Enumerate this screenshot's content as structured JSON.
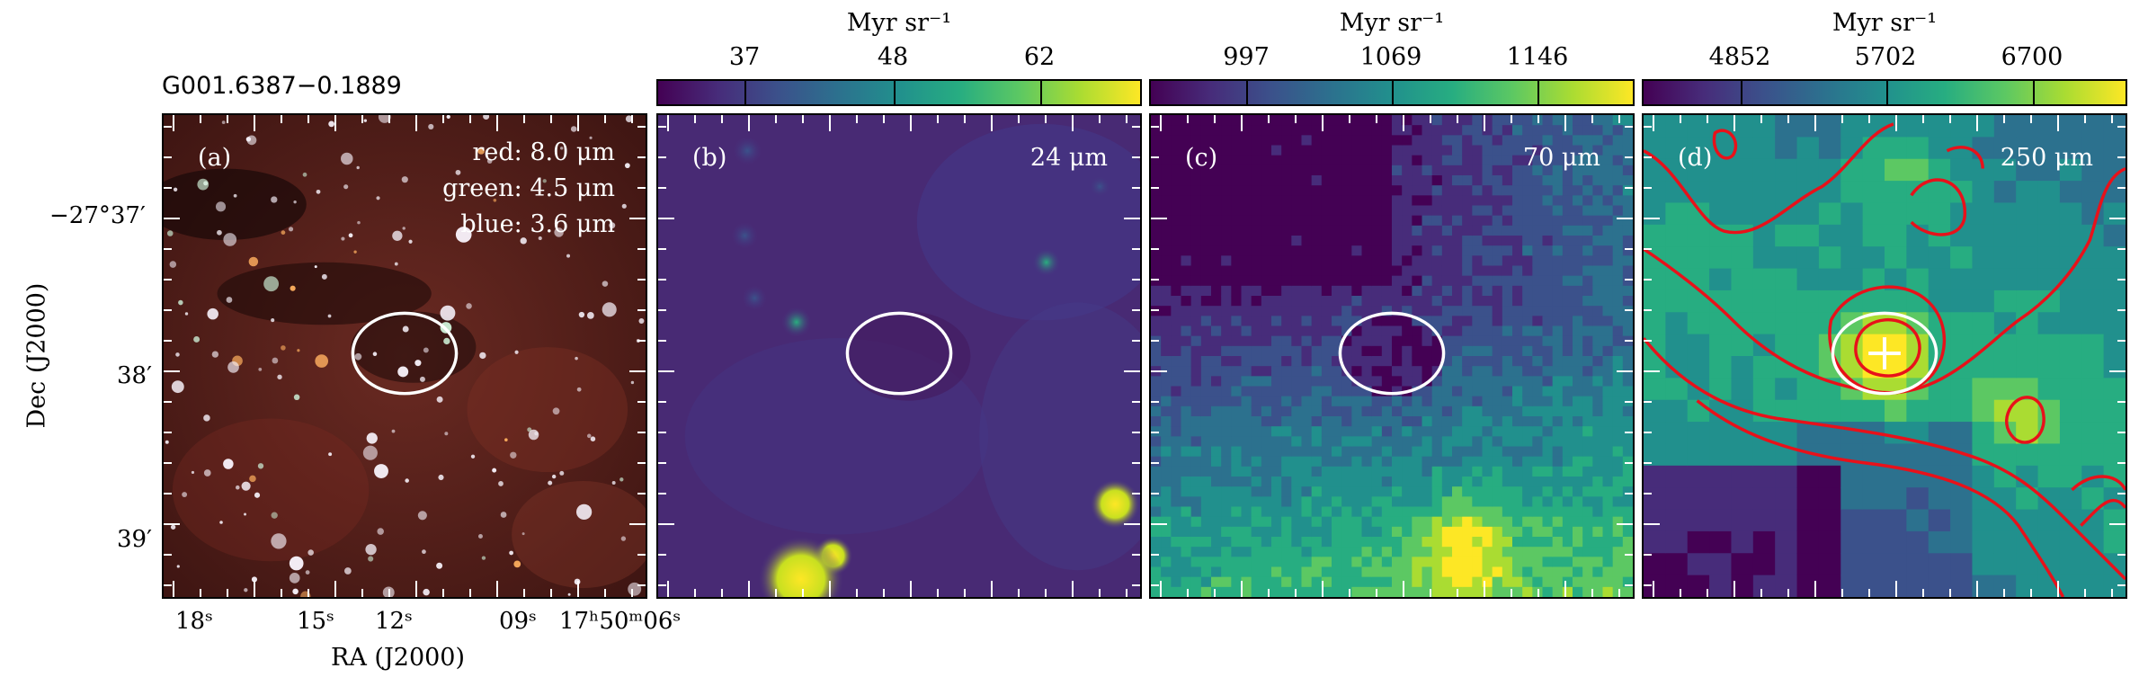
{
  "source_name": "G001.6387−0.1889",
  "axes": {
    "xlabel": "RA (J2000)",
    "ylabel": "Dec (J2000)",
    "ra_ticks": [
      "18ˢ",
      "15ˢ",
      "12ˢ",
      "09ˢ",
      "17ʰ50ᵐ06ˢ"
    ],
    "dec_ticks": [
      "−27°37′",
      "38′",
      "39′"
    ]
  },
  "panels": [
    {
      "id": "a",
      "label": "(a)",
      "legend": [
        "red: 8.0 μm",
        "green: 4.5 μm",
        "blue: 3.6 μm"
      ]
    },
    {
      "id": "b",
      "label": "(b)",
      "wavelength": "24 μm",
      "unit": "Myr sr⁻¹",
      "cbar_ticks": [
        "37",
        "48",
        "62"
      ]
    },
    {
      "id": "c",
      "label": "(c)",
      "wavelength": "70 μm",
      "unit": "Myr sr⁻¹",
      "cbar_ticks": [
        "997",
        "1069",
        "1146"
      ]
    },
    {
      "id": "d",
      "label": "(d)",
      "wavelength": "250 μm",
      "unit": "Myr sr⁻¹",
      "cbar_ticks": [
        "4852",
        "5702",
        "6700"
      ]
    }
  ],
  "colors": {
    "ellipse": "#ffffff",
    "contours": "#e8111a",
    "colormap": "viridis"
  }
}
